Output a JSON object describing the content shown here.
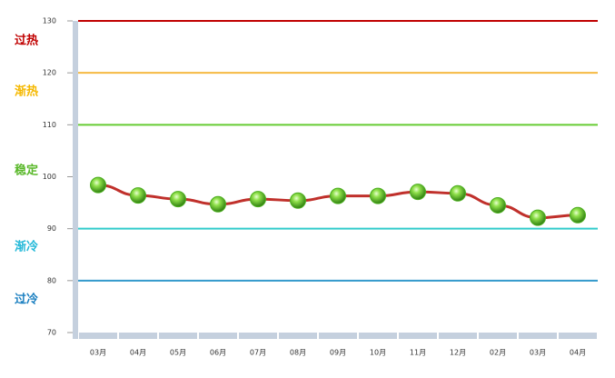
{
  "chart_data": {
    "type": "line",
    "categories": [
      "03月",
      "04月",
      "05月",
      "06月",
      "07月",
      "08月",
      "09月",
      "10月",
      "11月",
      "12月",
      "02月",
      "03月",
      "04月"
    ],
    "values": [
      98.4,
      96.4,
      95.7,
      94.7,
      95.7,
      95.4,
      96.3,
      96.3,
      97.1,
      96.8,
      94.5,
      92.1,
      92.6
    ],
    "color": "#c0302b",
    "marker_color": "#4caf1f",
    "ylim": [
      70,
      130
    ],
    "yticks": [
      70,
      80,
      90,
      100,
      110,
      120,
      130
    ],
    "reference_lines": [
      {
        "value": 130,
        "color": "#c00000"
      },
      {
        "value": 120,
        "color": "#f5b942"
      },
      {
        "value": 110,
        "color": "#66cc33"
      },
      {
        "value": 90,
        "color": "#33cccc"
      },
      {
        "value": 80,
        "color": "#3399cc"
      }
    ],
    "zones": [
      {
        "label": "过热",
        "color": "#c00000"
      },
      {
        "label": "渐热",
        "color": "#f5b800"
      },
      {
        "label": "稳定",
        "color": "#5ab82a"
      },
      {
        "label": "渐冷",
        "color": "#22b8d8"
      },
      {
        "label": "过冷",
        "color": "#1a7fc0"
      }
    ]
  }
}
